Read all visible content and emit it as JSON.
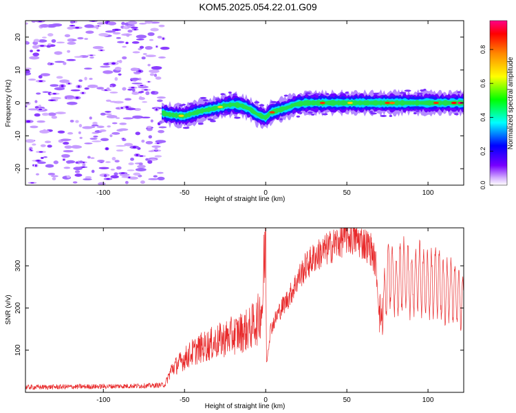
{
  "title": "KOM5.2025.054.22.01.G09",
  "chart_data": [
    {
      "type": "heatmap",
      "xlabel": "Height of straight line (km)",
      "ylabel": "Frequency (Hz)",
      "xlim": [
        -148,
        122
      ],
      "ylim": [
        -25,
        25
      ],
      "xticks": [
        -100,
        -50,
        0,
        50,
        100
      ],
      "yticks": [
        -20,
        -10,
        0,
        10,
        20
      ],
      "colorbar": {
        "label": "Normalized spectral amplitude",
        "range": [
          0,
          0.97
        ],
        "ticks": [
          0,
          0.2,
          0.4,
          0.6,
          0.8
        ],
        "tick_labels": [
          "0.0",
          "0.2",
          "0.4",
          "0.6",
          "0.8"
        ],
        "colormap": [
          "#ffffff",
          "#7700ff",
          "#0000ff",
          "#00ffff",
          "#00ff00",
          "#ffff00",
          "#ff8800",
          "#ff0000",
          "#ff0080"
        ]
      },
      "trace": {
        "description_points": [
          [
            -64,
            -3
          ],
          [
            -60,
            -3.5
          ],
          [
            -55,
            -3.8
          ],
          [
            -50,
            -4
          ],
          [
            -45,
            -3.2
          ],
          [
            -40,
            -2.5
          ],
          [
            -35,
            -2
          ],
          [
            -30,
            -1.5
          ],
          [
            -25,
            -0.8
          ],
          [
            -20,
            -0.5
          ],
          [
            -15,
            -0.8
          ],
          [
            -10,
            -1.8
          ],
          [
            -5,
            -3.5
          ],
          [
            0,
            -4.5
          ],
          [
            3,
            -3
          ],
          [
            8,
            -2.2
          ],
          [
            13,
            -1.5
          ],
          [
            18,
            -0.5
          ],
          [
            25,
            0
          ],
          [
            40,
            0
          ],
          [
            60,
            0
          ],
          [
            80,
            0
          ],
          [
            100,
            0
          ],
          [
            122,
            0
          ]
        ],
        "noise_region_x": [
          -148,
          -62
        ]
      }
    },
    {
      "type": "line",
      "xlabel": "Height of straight line (km)",
      "ylabel": "SNR (v/v)",
      "xlim": [
        -148,
        122
      ],
      "ylim": [
        0,
        390
      ],
      "xticks": [
        -100,
        -50,
        0,
        50,
        100
      ],
      "yticks": [
        100,
        200,
        300
      ],
      "series": [
        {
          "color": "#e8292a",
          "envelope": [
            [
              -148,
              12
            ],
            [
              -100,
              14
            ],
            [
              -70,
              16
            ],
            [
              -62,
              18
            ],
            [
              -58,
              55
            ],
            [
              -50,
              80
            ],
            [
              -45,
              95
            ],
            [
              -40,
              105
            ],
            [
              -30,
              120
            ],
            [
              -20,
              135
            ],
            [
              -10,
              150
            ],
            [
              -5,
              170
            ],
            [
              -2,
              210
            ],
            [
              0,
              380
            ],
            [
              0.5,
              70
            ],
            [
              3,
              150
            ],
            [
              8,
              190
            ],
            [
              15,
              230
            ],
            [
              20,
              270
            ],
            [
              25,
              300
            ],
            [
              30,
              320
            ],
            [
              40,
              345
            ],
            [
              50,
              370
            ],
            [
              55,
              365
            ],
            [
              60,
              355
            ],
            [
              65,
              340
            ],
            [
              68,
              300
            ],
            [
              70,
              190
            ],
            [
              72,
              180
            ],
            [
              74,
              250
            ],
            [
              76,
              300
            ],
            [
              80,
              250
            ],
            [
              85,
              280
            ],
            [
              90,
              255
            ],
            [
              95,
              275
            ],
            [
              100,
              250
            ],
            [
              105,
              270
            ],
            [
              110,
              240
            ],
            [
              115,
              245
            ],
            [
              120,
              220
            ],
            [
              122,
              210
            ]
          ]
        }
      ]
    }
  ]
}
